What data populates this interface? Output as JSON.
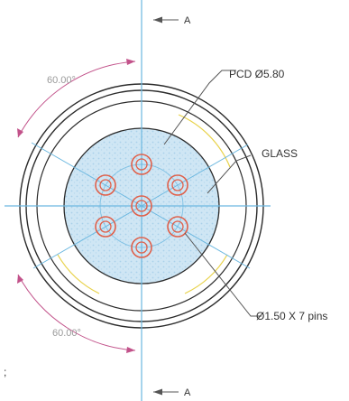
{
  "drawing": {
    "section_top": "A",
    "section_bottom": "A",
    "angle_top": "60.00°",
    "angle_bottom": "60.00°",
    "pcd_label": "PCD Ø5.80",
    "glass_label": "GLASS",
    "pin_label": "Ø1.50 X 7 pins",
    "stray_mark": ";"
  },
  "colors": {
    "centerline": "#6cb8e0",
    "outline": "#2b2b2b",
    "dimension": "#c2528a",
    "pin": "#e0604a",
    "glass_fill": "#cfe6f4",
    "guide_arc": "#e8d24a"
  },
  "legend_icons": [
    "section-arrow-icon"
  ]
}
